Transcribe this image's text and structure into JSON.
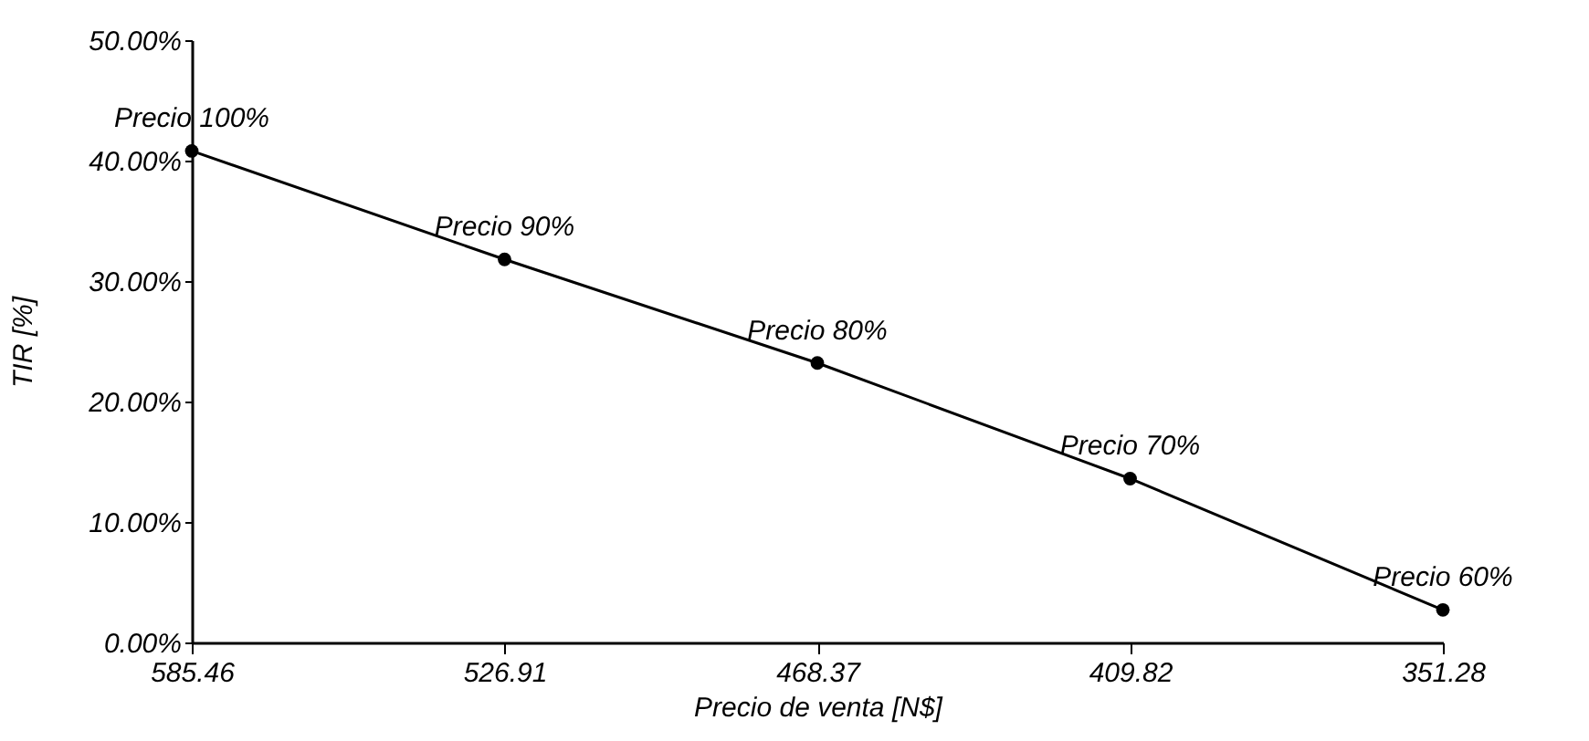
{
  "chart_data": {
    "type": "line",
    "xlabel": "Precio de venta [N$]",
    "ylabel": "TIR [%]",
    "categories": [
      "585.46",
      "526.91",
      "468.37",
      "409.82",
      "351.28"
    ],
    "series": [
      {
        "color": "#000000",
        "values": [
          40.8,
          31.8,
          23.2,
          13.6,
          2.7
        ]
      }
    ],
    "ylim": [
      0,
      50
    ],
    "yticks": [
      {
        "value": 0,
        "label": "0.00%"
      },
      {
        "value": 10,
        "label": "10.00%"
      },
      {
        "value": 20,
        "label": "20.00%"
      },
      {
        "value": 30,
        "label": "30.00%"
      },
      {
        "value": 40,
        "label": "40.00%"
      },
      {
        "value": 50,
        "label": "50.00%"
      }
    ],
    "annotations": [
      {
        "text": "Precio 100%",
        "x": "585.46",
        "y": 40.8
      },
      {
        "text": "Precio 90%",
        "x": "526.91",
        "y": 31.8
      },
      {
        "text": "Precio 80%",
        "x": "468.37",
        "y": 23.2
      },
      {
        "text": "Precio 70%",
        "x": "409.82",
        "y": 13.6
      },
      {
        "text": "Precio 60%",
        "x": "351.28",
        "y": 2.7
      }
    ],
    "marker": "circle",
    "line_style": "solid",
    "grid": false
  }
}
